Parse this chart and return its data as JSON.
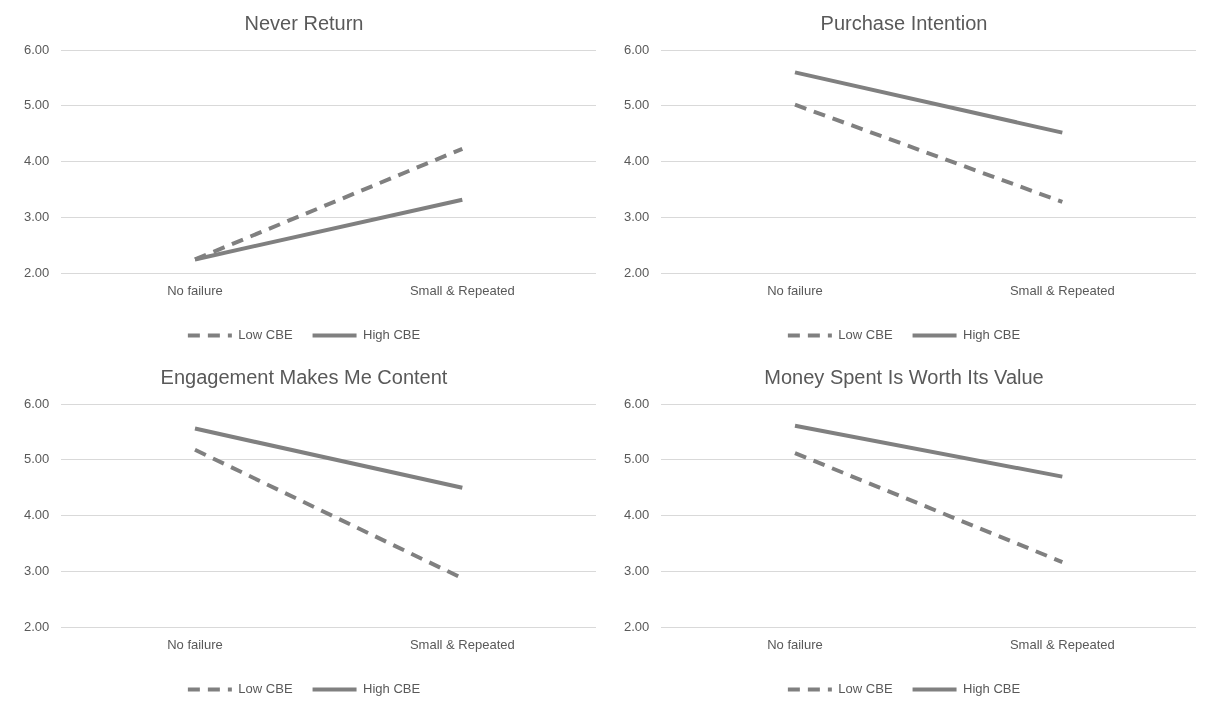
{
  "chart_data": [
    {
      "type": "line",
      "title": "Never Return",
      "categories": [
        "No failure",
        "Small & Repeated"
      ],
      "ylim": [
        2,
        6
      ],
      "yticks": [
        {
          "value": 2,
          "label": "2.00"
        },
        {
          "value": 3,
          "label": "3.00"
        },
        {
          "value": 4,
          "label": "4.00"
        },
        {
          "value": 5,
          "label": "5.00"
        },
        {
          "value": 6,
          "label": "6.00"
        }
      ],
      "grid": "y",
      "legend": "bottom",
      "marker": "none",
      "series": [
        {
          "name": "Low CBE",
          "color": "#808080",
          "line_style": "dashed",
          "values": [
            2.25,
            4.23
          ]
        },
        {
          "name": "High CBE",
          "color": "#808080",
          "line_style": "solid",
          "values": [
            2.25,
            3.32
          ]
        }
      ]
    },
    {
      "type": "line",
      "title": "Purchase Intention",
      "categories": [
        "No failure",
        "Small & Repeated"
      ],
      "ylim": [
        2,
        6
      ],
      "yticks": [
        {
          "value": 2,
          "label": "2.00"
        },
        {
          "value": 3,
          "label": "3.00"
        },
        {
          "value": 4,
          "label": "4.00"
        },
        {
          "value": 5,
          "label": "5.00"
        },
        {
          "value": 6,
          "label": "6.00"
        }
      ],
      "grid": "y",
      "legend": "bottom",
      "marker": "none",
      "series": [
        {
          "name": "Low CBE",
          "color": "#808080",
          "line_style": "dashed",
          "values": [
            5.02,
            3.28
          ]
        },
        {
          "name": "High CBE",
          "color": "#808080",
          "line_style": "solid",
          "values": [
            5.6,
            4.52
          ]
        }
      ]
    },
    {
      "type": "line",
      "title": "Engagement Makes Me Content",
      "categories": [
        "No failure",
        "Small & Repeated"
      ],
      "ylim": [
        2,
        6
      ],
      "yticks": [
        {
          "value": 2,
          "label": "2.00"
        },
        {
          "value": 3,
          "label": "3.00"
        },
        {
          "value": 4,
          "label": "4.00"
        },
        {
          "value": 5,
          "label": "5.00"
        },
        {
          "value": 6,
          "label": "6.00"
        }
      ],
      "grid": "y",
      "legend": "bottom",
      "marker": "none",
      "series": [
        {
          "name": "Low CBE",
          "color": "#808080",
          "line_style": "dashed",
          "values": [
            5.18,
            2.88
          ]
        },
        {
          "name": "High CBE",
          "color": "#808080",
          "line_style": "solid",
          "values": [
            5.56,
            4.5
          ]
        }
      ]
    },
    {
      "type": "line",
      "title": "Money Spent Is Worth Its Value",
      "categories": [
        "No failure",
        "Small & Repeated"
      ],
      "ylim": [
        2,
        6
      ],
      "yticks": [
        {
          "value": 2,
          "label": "2.00"
        },
        {
          "value": 3,
          "label": "3.00"
        },
        {
          "value": 4,
          "label": "4.00"
        },
        {
          "value": 5,
          "label": "5.00"
        },
        {
          "value": 6,
          "label": "6.00"
        }
      ],
      "grid": "y",
      "legend": "bottom",
      "marker": "none",
      "series": [
        {
          "name": "Low CBE",
          "color": "#808080",
          "line_style": "dashed",
          "values": [
            5.12,
            3.17
          ]
        },
        {
          "name": "High CBE",
          "color": "#808080",
          "line_style": "solid",
          "values": [
            5.61,
            4.7
          ]
        }
      ]
    }
  ]
}
